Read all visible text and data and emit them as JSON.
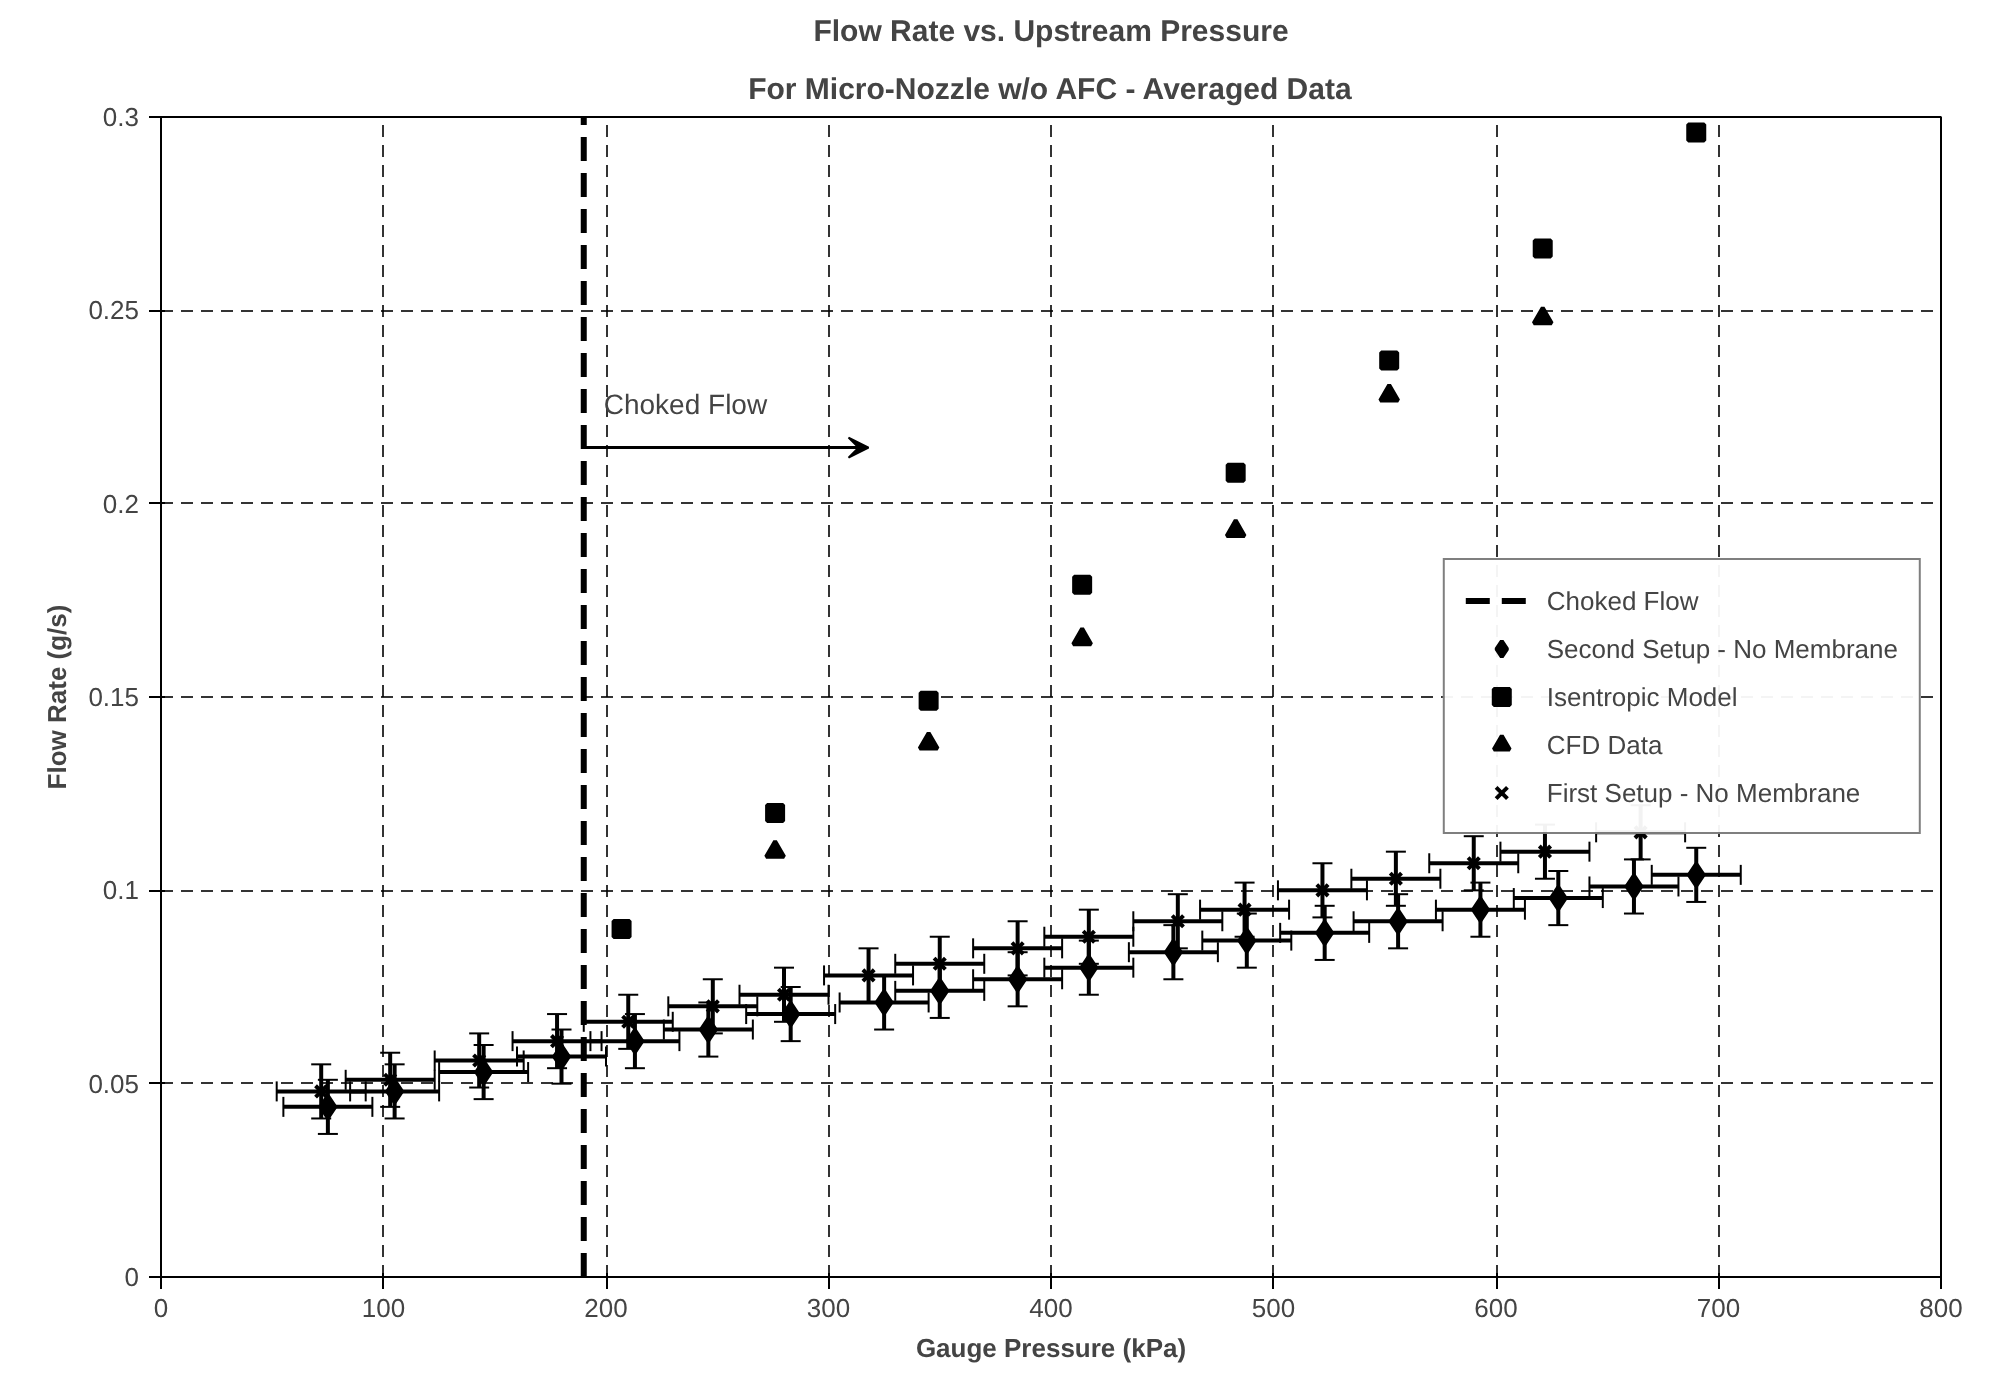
{
  "chart_data": {
    "type": "scatter",
    "title": "Flow Rate vs. Upstream Pressure",
    "subtitle": "For Micro-Nozzle w/o AFC - Averaged Data",
    "xlabel": "Gauge Pressure (kPa)",
    "ylabel": "Flow Rate (g/s)",
    "xlim": [
      0,
      800
    ],
    "ylim": [
      0,
      0.3
    ],
    "xticks": [
      0,
      100,
      200,
      300,
      400,
      500,
      600,
      700,
      800
    ],
    "yticks": [
      0,
      0.05,
      0.1,
      0.15,
      0.2,
      0.25,
      0.3
    ],
    "grid": true,
    "legend": "right",
    "series": [
      {
        "name": "Second Setup - No Membrane",
        "color": "#000000",
        "marker": "diamond",
        "x": [
          75,
          105,
          145,
          180,
          213,
          246,
          283,
          325,
          350,
          385,
          417,
          455,
          488,
          523,
          556,
          593,
          628,
          662,
          690
        ],
        "values": [
          0.044,
          0.048,
          0.053,
          0.057,
          0.061,
          0.064,
          0.068,
          0.071,
          0.074,
          0.077,
          0.08,
          0.084,
          0.087,
          0.089,
          0.092,
          0.095,
          0.098,
          0.101,
          0.104
        ],
        "errors": [
          0.007,
          0.007,
          0.007,
          0.007,
          0.007,
          0.007,
          0.007,
          0.007,
          0.007,
          0.007,
          0.007,
          0.007,
          0.007,
          0.007,
          0.007,
          0.007,
          0.007,
          0.007,
          0.007
        ],
        "xerrors": [
          20,
          20,
          20,
          20,
          20,
          20,
          20,
          20,
          20,
          20,
          20,
          20,
          20,
          20,
          20,
          20,
          20,
          20,
          20
        ]
      },
      {
        "name": "Isentropic Model",
        "color": "#000000",
        "marker": "square",
        "x": [
          207,
          276,
          345,
          414,
          483,
          552,
          621,
          690
        ],
        "values": [
          0.09,
          0.12,
          0.149,
          0.179,
          0.208,
          0.237,
          0.266,
          0.296
        ]
      },
      {
        "name": "CFD Data",
        "color": "#000000",
        "marker": "triangle",
        "x": [
          276,
          345,
          414,
          483,
          552,
          621
        ],
        "values": [
          0.11,
          0.138,
          0.165,
          0.193,
          0.228,
          0.248
        ]
      },
      {
        "name": "First Setup - No Membrane",
        "color": "#000000",
        "marker": "cross",
        "x": [
          72,
          103,
          143,
          178,
          210,
          248,
          280,
          318,
          350,
          385,
          417,
          457,
          487,
          522,
          555,
          590,
          622,
          665
        ],
        "values": [
          0.048,
          0.051,
          0.056,
          0.061,
          0.066,
          0.07,
          0.073,
          0.078,
          0.081,
          0.085,
          0.088,
          0.092,
          0.095,
          0.1,
          0.103,
          0.107,
          0.11,
          0.115
        ],
        "errors": [
          0.007,
          0.007,
          0.007,
          0.007,
          0.007,
          0.007,
          0.007,
          0.007,
          0.007,
          0.007,
          0.007,
          0.007,
          0.007,
          0.007,
          0.007,
          0.007,
          0.007,
          0.007
        ],
        "xerrors": [
          20,
          20,
          20,
          20,
          20,
          20,
          20,
          20,
          20,
          20,
          20,
          20,
          20,
          20,
          20,
          20,
          20,
          20
        ]
      }
    ],
    "ref_lines": [
      {
        "axis": "x",
        "value": 190,
        "label": "Choked Flow",
        "color": "#000000",
        "line_style": "dashed"
      }
    ]
  }
}
